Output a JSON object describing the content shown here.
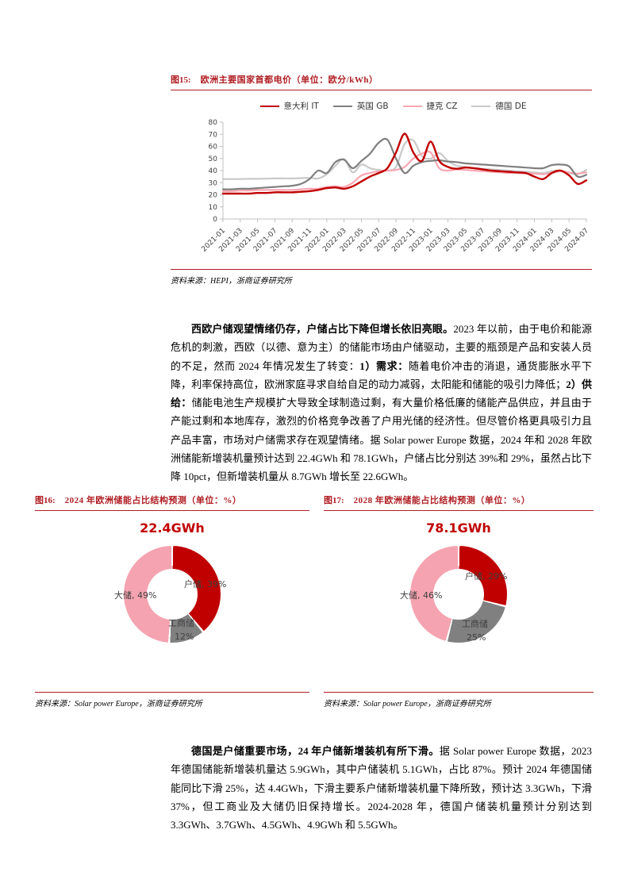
{
  "colors": {
    "accent": "#B01E23",
    "emphasis_red": "#C00000"
  },
  "fig15": {
    "label": "图15:",
    "title": "欧洲主要国家首都电价（单位：欧分/kWh）",
    "source": "资料来源：HEPI，浙商证券研究所"
  },
  "fig16": {
    "label": "图16:",
    "title": "2024 年欧洲储能占比结构预测（单位：%）",
    "source": "资料来源：Solar power Europe，浙商证券研究所"
  },
  "fig17": {
    "label": "图17:",
    "title": "2028 年欧洲储能占比结构预测（单位：%）",
    "source": "资料来源：Solar power Europe，浙商证券研究所"
  },
  "paragraphs": {
    "p1": [
      {
        "b": 1,
        "t": "西欧户储观望情绪仍存，户储占比下降但增长依旧亮眼。"
      },
      {
        "t": "2023 年以前，由于电价和能源危机的刺激，西欧（以德、意为主）的储能市场由户储驱动，主要的瓶颈是产品和安装人员的不足，然而 2024 年情况发生了转变："
      },
      {
        "b": 1,
        "t": "1）需求："
      },
      {
        "t": "随着电价冲击的消退，通货膨胀水平下降，利率保持高位，欧洲家庭寻求自给自足的动力减弱，太阳能和储能的吸引力降低；"
      },
      {
        "b": 1,
        "t": "2）供给："
      },
      {
        "t": "储能电池生产规模扩大导致全球制造过剩，有大量价格低廉的储能产品供应，并且由于产能过剩和本地库存，激烈的价格竞争改善了户用光储的经济性。但尽管价格更具吸引力且产品丰富，市场对户储需求存在观望情绪。据 Solar power Europe 数据，2024 年和 2028 年欧洲储能新增装机量预计达到 22.4GWh 和 78.1GWh，户储占比分别达 39%和 29%，虽然占比下降 10pct，但新增装机量从 8.7GWh 增长至 22.6GWh。"
      }
    ],
    "p2": [
      {
        "b": 1,
        "t": "德国是户储重要市场，24 年户储新增装机有所下滑。"
      },
      {
        "t": "据 Solar power Europe 数据，2023 年德国储能新增装机量达 5.9GWh，其中户储装机 5.1GWh，占比 87%。预计 2024 年德国储能同比下滑 25%，达 4.4GWh，下滑主要系户储新增装机量下降所致，预计达 3.3GWh，下滑 37%，但工商业及大储仍旧保持增长。2024-2028 年，德国户储装机量预计分别达到 3.3GWh、3.7GWh、4.5GWh、4.9GWh 和 5.5GWh。"
      }
    ]
  },
  "chart_data": [
    {
      "id": "europe-capital-electricity-price",
      "type": "line",
      "title": "欧洲主要国家首都电价",
      "unit": "欧分/kWh",
      "ylim": [
        0,
        80
      ],
      "yticks": [
        0,
        10,
        20,
        30,
        40,
        50,
        60,
        70,
        80
      ],
      "grid": false,
      "legend_position": "top",
      "x_labels": [
        "2021-01",
        "2021-03",
        "2021-05",
        "2021-07",
        "2021-09",
        "2021-11",
        "2022-01",
        "2022-03",
        "2022-05",
        "2022-07",
        "2022-09",
        "2022-11",
        "2023-01",
        "2023-03",
        "2023-05",
        "2023-07",
        "2023-09",
        "2023-11",
        "2024-01",
        "2024-03",
        "2024-05",
        "2024-07"
      ],
      "points_per_label": 2,
      "series": [
        {
          "name": "意大利 IT",
          "color": "#C00000",
          "width": 2.4,
          "values": [
            21,
            21,
            21,
            21,
            21.5,
            21.5,
            22,
            22,
            22,
            22.5,
            23,
            24,
            25.5,
            26,
            25,
            27,
            31,
            35,
            38,
            42,
            55,
            70.5,
            55,
            48,
            64,
            48,
            43,
            41.5,
            42.5,
            42,
            41,
            40,
            39.5,
            39,
            38.5,
            38,
            35,
            33,
            38,
            40,
            36,
            29,
            32
          ]
        },
        {
          "name": "英国 GB",
          "color": "#7F7F7F",
          "width": 2.2,
          "values": [
            24.5,
            24.5,
            25,
            25,
            25.5,
            26,
            26.5,
            27,
            27.5,
            29,
            33,
            40,
            38,
            47,
            49,
            42,
            48,
            54,
            63,
            65.5,
            50,
            38,
            44,
            47,
            48,
            48.5,
            47.5,
            47,
            46,
            45.5,
            45,
            44.5,
            44,
            43.5,
            43,
            42.5,
            42,
            42,
            44.5,
            45,
            43.5,
            35,
            36.5
          ]
        },
        {
          "name": "捷克 CZ",
          "color": "#F8A7B2",
          "width": 2.2,
          "values": [
            23,
            23,
            23.5,
            23.5,
            24,
            24,
            24,
            24,
            24,
            24.5,
            25,
            25,
            26.5,
            27,
            26.5,
            30,
            36,
            38,
            39.5,
            40,
            40.5,
            43,
            50,
            54,
            55,
            42,
            40,
            41,
            40.5,
            40,
            39.5,
            39,
            38.5,
            38,
            38,
            37.5,
            37.5,
            37,
            38,
            39.5,
            38.5,
            37.5,
            38.5
          ]
        },
        {
          "name": "德国 DE",
          "color": "#C9C9C9",
          "width": 2.2,
          "values": [
            33,
            33,
            33,
            33.2,
            33.2,
            33.3,
            33.5,
            33.5,
            33.5,
            33.8,
            34,
            33.5,
            37,
            44,
            49.5,
            38.5,
            45,
            42,
            40.5,
            40,
            43,
            62,
            65,
            52,
            50,
            54.5,
            48,
            44,
            43,
            42,
            41.5,
            41,
            40.5,
            40,
            39.5,
            39,
            38.5,
            38,
            39.5,
            40,
            38,
            37,
            40.5
          ]
        }
      ]
    },
    {
      "id": "europe-storage-mix-2024",
      "type": "pie",
      "title": "22.4GWh",
      "unit": "%",
      "slices": [
        {
          "label": "户储",
          "value": 39,
          "color": "#C00000"
        },
        {
          "label": "工商储",
          "value": 12,
          "color": "#808080"
        },
        {
          "label": "大储",
          "value": 49,
          "color": "#F5A3B0"
        }
      ],
      "labels": [
        {
          "text": "户储, 39%",
          "x": 188,
          "y": 84
        },
        {
          "text": "大储, 49%",
          "x": 100,
          "y": 98
        },
        {
          "text": "工商储",
          "x": 168,
          "y": 133
        },
        {
          "text": "12%",
          "x": 176,
          "y": 152
        }
      ]
    },
    {
      "id": "europe-storage-mix-2028",
      "type": "pie",
      "title": "78.1GWh",
      "unit": "%",
      "slices": [
        {
          "label": "户储",
          "value": 29,
          "color": "#C00000"
        },
        {
          "label": "工商储",
          "value": 25,
          "color": "#808080"
        },
        {
          "label": "大储",
          "value": 46,
          "color": "#F5A3B0"
        }
      ],
      "labels": [
        {
          "text": "户储, 29%",
          "x": 178,
          "y": 74
        },
        {
          "text": "大储, 46%",
          "x": 96,
          "y": 98
        },
        {
          "text": "工商储",
          "x": 174,
          "y": 134
        },
        {
          "text": "25%",
          "x": 180,
          "y": 153
        }
      ]
    }
  ]
}
